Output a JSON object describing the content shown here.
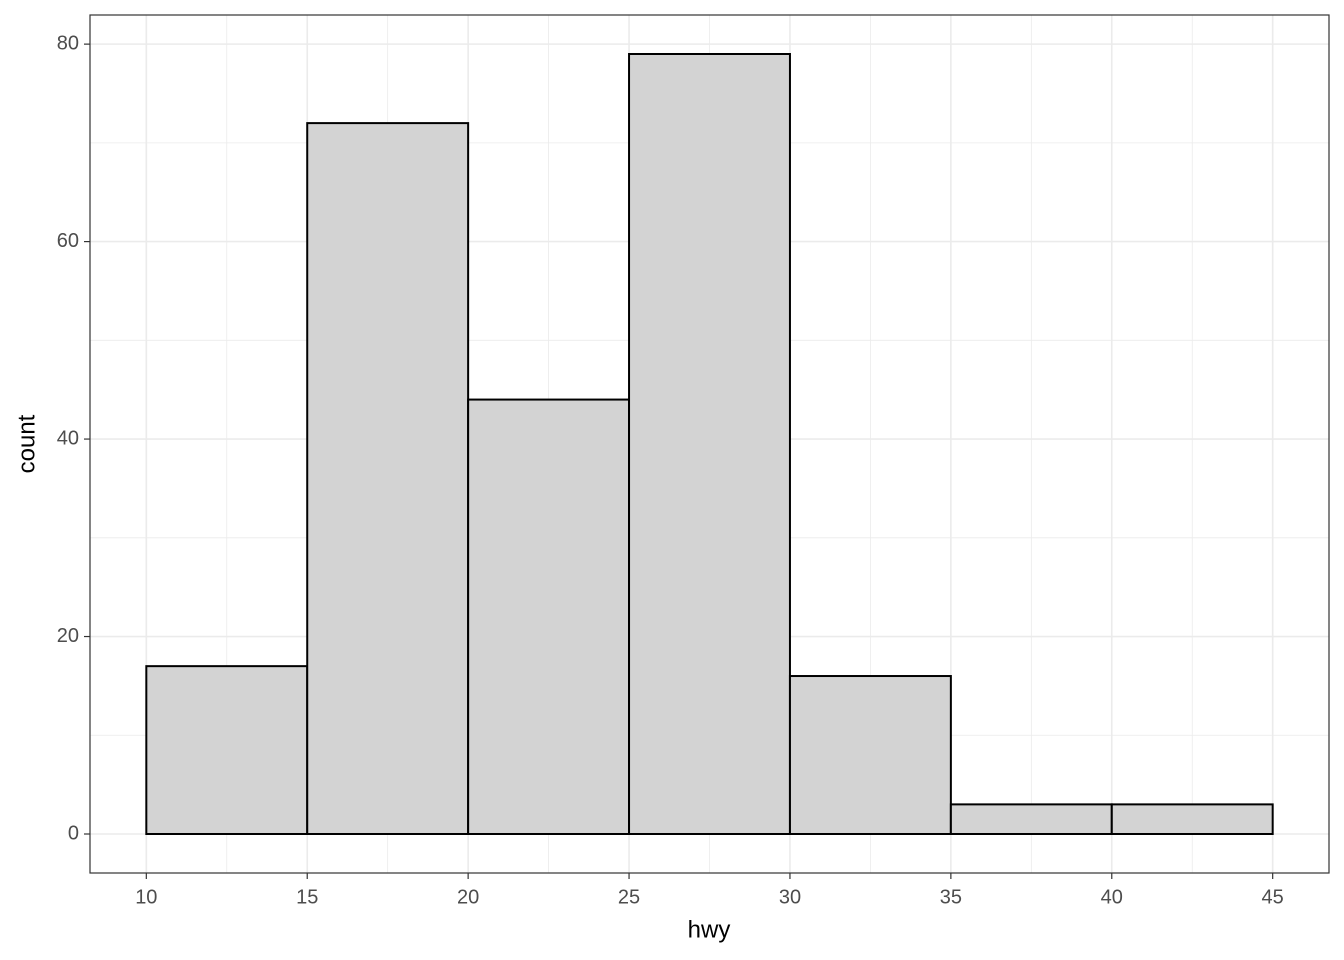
{
  "chart_data": {
    "type": "histogram",
    "x_label": "hwy",
    "y_label": "count",
    "bins": [
      10,
      15,
      20,
      25,
      30,
      35,
      40,
      45
    ],
    "values": [
      17,
      72,
      44,
      79,
      16,
      3,
      3
    ],
    "color": "#d3d3d3",
    "edge_color": "#000000",
    "xlim": [
      8.25,
      46.75
    ],
    "xticks": [
      10,
      15,
      20,
      25,
      30,
      35,
      40,
      45
    ],
    "ylim": [
      -3.95,
      82.95
    ],
    "yticks": [
      0,
      20,
      40,
      60,
      80
    ],
    "grid": true
  }
}
